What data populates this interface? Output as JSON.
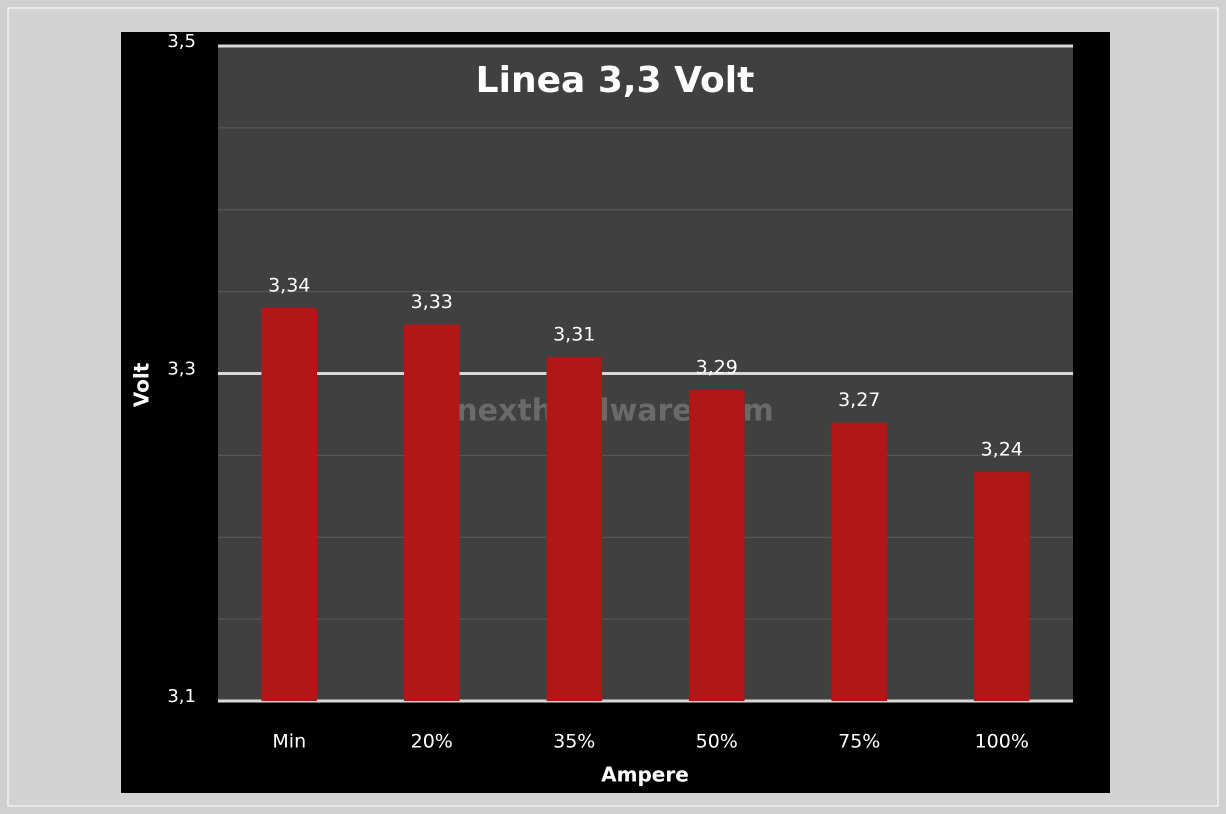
{
  "chart_data": {
    "type": "bar",
    "title": "Linea 3,3 Volt",
    "watermark": "nexthardware.com",
    "x_label": "Ampere",
    "y_label": "Volt",
    "categories": [
      "Min",
      "20%",
      "35%",
      "50%",
      "75%",
      "100%"
    ],
    "values": [
      3.34,
      3.33,
      3.31,
      3.29,
      3.27,
      3.24
    ],
    "value_labels": [
      "3,34",
      "3,33",
      "3,31",
      "3,29",
      "3,27",
      "3,24"
    ],
    "color": "#b01818",
    "ylim": [
      3.1,
      3.5
    ],
    "yticks": [
      {
        "value": 3.1,
        "label": "3,1"
      },
      {
        "value": 3.3,
        "label": "3,3"
      },
      {
        "value": 3.5,
        "label": "3,5"
      }
    ],
    "minor_yticks": [
      3.15,
      3.2,
      3.25,
      3.35,
      3.4,
      3.45
    ],
    "grid": true
  }
}
